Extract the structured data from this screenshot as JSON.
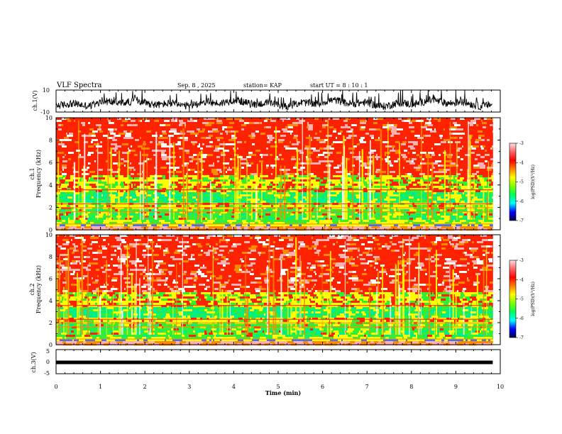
{
  "header": {
    "title": "VLF Spectra",
    "date": "Sep. 8  , 2025",
    "station": "station= KAP",
    "start": "start  UT  =  8 : 10 : 1"
  },
  "chart_data": {
    "type": "heatmap",
    "x": {
      "label": "Time  (min)",
      "range": [
        0,
        10
      ],
      "ticks": [
        "0",
        "1",
        "2",
        "3",
        "4",
        "5",
        "6",
        "7",
        "8",
        "9",
        "10"
      ]
    },
    "panels": [
      {
        "id": "ch1-waveform",
        "type": "line",
        "ylabel": "ch.1(V)",
        "ylim": [
          -10,
          10
        ],
        "ticks": [
          "10",
          "-10"
        ],
        "data_end_min": 9.83
      },
      {
        "id": "ch1-spectrogram",
        "type": "heatmap",
        "ylabel_1": "ch.1",
        "ylabel_2": "Frequency  (kHz)",
        "ylim": [
          0,
          10
        ],
        "ticks": [
          "0",
          "2",
          "4",
          "6",
          "8",
          "10"
        ],
        "data_end_min": 9.83
      },
      {
        "id": "ch2-spectrogram",
        "type": "heatmap",
        "ylabel_1": "ch.2",
        "ylabel_2": "Frequency  (kHz)",
        "ylim": [
          0,
          10
        ],
        "ticks": [
          "0",
          "2",
          "4",
          "6",
          "8",
          "10"
        ],
        "data_end_min": 9.83
      },
      {
        "id": "ch3-waveform",
        "type": "line",
        "ylabel": "ch.3(V)",
        "ylim": [
          -5,
          5
        ],
        "ticks": [
          "5",
          "0",
          "-5"
        ],
        "level": -0.3,
        "data_end_min": 9.83
      }
    ],
    "colorbar": {
      "label": "log(PSD)(V²/Hz)",
      "range": [
        -7,
        -3
      ],
      "ticks": [
        "-3",
        "-4",
        "-5",
        "-6",
        "-7"
      ],
      "colors": [
        "#000044",
        "#0000ff",
        "#00ffff",
        "#00ff55",
        "#7fff00",
        "#ffff00",
        "#ff8000",
        "#ff0000",
        "#ff6666",
        "#ffe0e0"
      ]
    },
    "spectra_colors": {
      "white": "#ffffff",
      "pink": "#ffb0b0",
      "red": "#ff2200",
      "orange": "#ff8800",
      "yellow": "#ffff00",
      "green": "#33ee33",
      "cyan": "#00ee88",
      "blue": "#3377ff"
    }
  }
}
